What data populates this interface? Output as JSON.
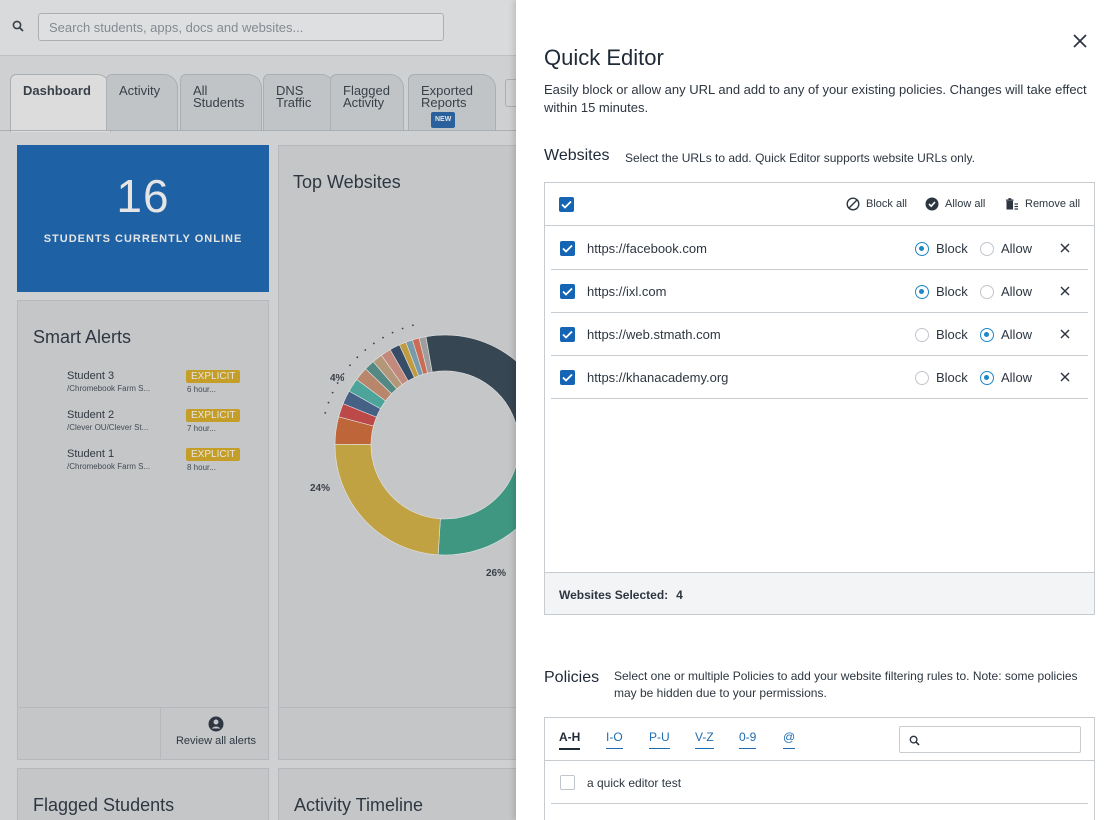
{
  "search": {
    "placeholder": "Search students, apps, docs and websites..."
  },
  "tabs": [
    {
      "label": "Dashboard",
      "active": true
    },
    {
      "label": "Activity"
    },
    {
      "label": "All\nStudents"
    },
    {
      "label": "DNS\nTraffic"
    },
    {
      "label": "Flagged\nActivity"
    },
    {
      "label": "Exported\nReports",
      "badge": "NEW"
    }
  ],
  "online": {
    "count": "16",
    "label": "STUDENTS CURRENTLY ONLINE"
  },
  "smart_alerts": {
    "title": "Smart Alerts",
    "items": [
      {
        "name": "Student 3",
        "path": "/Chromebook Farm S...",
        "tag": "EXPLICIT",
        "time": "6 hour..."
      },
      {
        "name": "Student 2",
        "path": "/Clever OU/Clever St...",
        "tag": "EXPLICIT",
        "time": "7 hour..."
      },
      {
        "name": "Student 1",
        "path": "/Chromebook Farm S...",
        "tag": "EXPLICIT",
        "time": "8 hour..."
      }
    ],
    "review_label": "Review all alerts"
  },
  "top_websites": {
    "title": "Top Websites",
    "labels": {
      "p4": "4%",
      "p24": "24%",
      "p26": "26%"
    }
  },
  "chart_data": {
    "type": "pie",
    "title": "Top Websites",
    "slices": [
      {
        "label": "",
        "value": 26,
        "color": "#36a085"
      },
      {
        "label": "",
        "value": 24,
        "color": "#d4ae3a"
      },
      {
        "label": "",
        "value": 4,
        "color": "#d0652f"
      },
      {
        "label": "",
        "value": 2,
        "color": "#cf4040"
      },
      {
        "label": "",
        "value": 2,
        "color": "#3d5f8c"
      },
      {
        "label": "",
        "value": 2,
        "color": "#46b0a4"
      },
      {
        "label": "",
        "value": 2,
        "color": "#c98b6b"
      },
      {
        "label": "",
        "value": 1.5,
        "color": "#4f8f88"
      },
      {
        "label": "",
        "value": 1.5,
        "color": "#c4a07c"
      },
      {
        "label": "",
        "value": 1.5,
        "color": "#d58f7f"
      },
      {
        "label": "",
        "value": 1.5,
        "color": "#2b4566"
      },
      {
        "label": "",
        "value": 1,
        "color": "#d2a537"
      },
      {
        "label": "",
        "value": 1,
        "color": "#7aa5b8"
      },
      {
        "label": "",
        "value": 1,
        "color": "#e06c52"
      },
      {
        "label": "",
        "value": 1,
        "color": "#a9a9a9"
      },
      {
        "label": "",
        "value": 27.5,
        "color": "#2b3e4d"
      }
    ]
  },
  "flagged_students": {
    "title": "Flagged Students"
  },
  "activity_timeline": {
    "title": "Activity Timeline"
  },
  "quick_editor": {
    "title": "Quick Editor",
    "description": "Easily block or allow any URL and add to any of your existing policies. Changes will take effect within 15 minutes.",
    "websites": {
      "title": "Websites",
      "description": "Select the URLs to add. Quick Editor supports website URLs only.",
      "actions": {
        "block_all": "Block all",
        "allow_all": "Allow all",
        "remove_all": "Remove all"
      },
      "block_label": "Block",
      "allow_label": "Allow",
      "rows": [
        {
          "url": "https://facebook.com",
          "mode": "block"
        },
        {
          "url": "https://ixl.com",
          "mode": "block"
        },
        {
          "url": "https://web.stmath.com",
          "mode": "allow"
        },
        {
          "url": "https://khanacademy.org",
          "mode": "allow"
        }
      ],
      "selected_label": "Websites Selected:",
      "selected_count": "4"
    },
    "policies": {
      "title": "Policies",
      "description": "Select one or multiple Policies to add your website filtering rules to. Note: some policies may be hidden due to your permissions.",
      "tabs": [
        "A-H",
        "I-O",
        "P-U",
        "V-Z",
        "0-9",
        "@"
      ],
      "items": [
        {
          "name": "a quick editor test"
        }
      ]
    }
  }
}
